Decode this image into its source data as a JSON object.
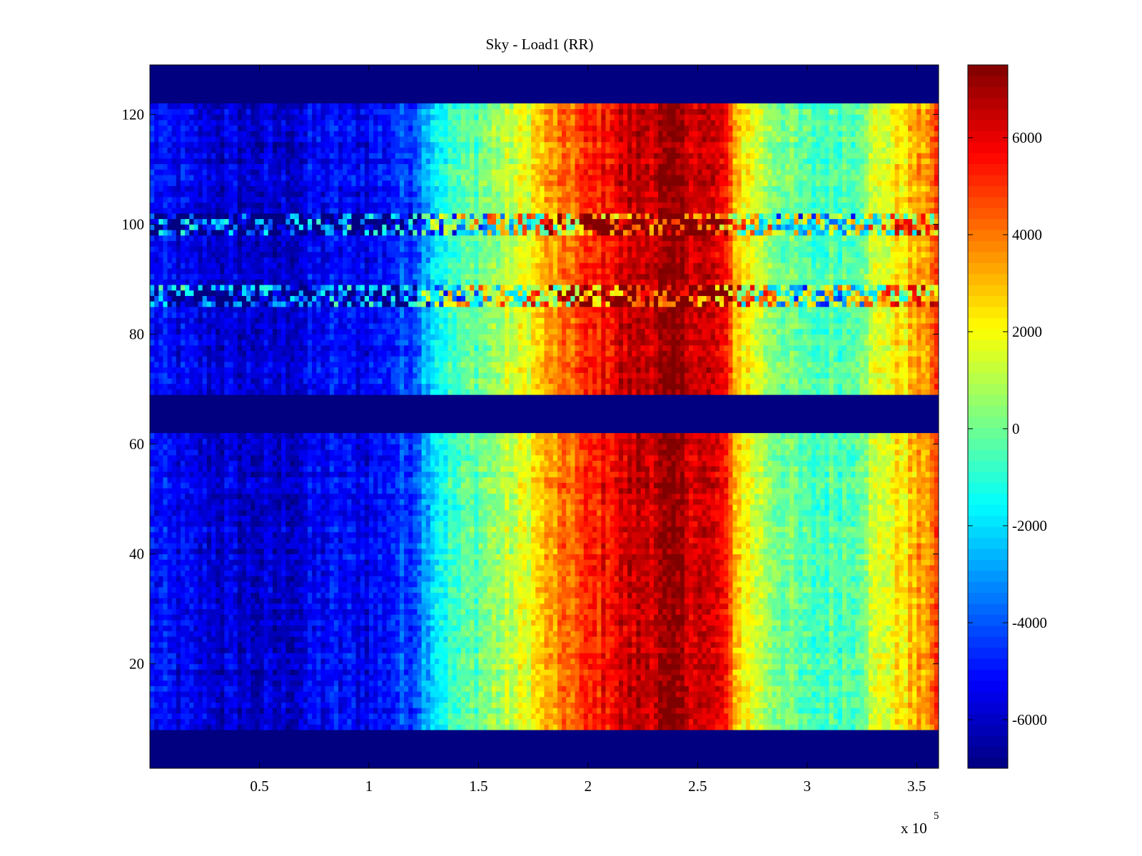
{
  "chart_data": {
    "type": "heatmap",
    "title": "Sky - Load1 (RR)",
    "xlabel": "",
    "ylabel": "",
    "x_multiplier_label": "x 10",
    "x_multiplier_exponent": "5",
    "xlim": [
      0,
      3.6
    ],
    "ylim": [
      1,
      129
    ],
    "x_ticks": [
      0.5,
      1,
      1.5,
      2,
      2.5,
      3,
      3.5
    ],
    "x_tick_labels": [
      "0.5",
      "1",
      "1.5",
      "2",
      "2.5",
      "3",
      "3.5"
    ],
    "y_ticks": [
      20,
      40,
      60,
      80,
      100,
      120
    ],
    "y_tick_labels": [
      "20",
      "40",
      "60",
      "80",
      "100",
      "120"
    ],
    "colormap": "jet",
    "clim": [
      -7000,
      7500
    ],
    "colorbar": {
      "ticks": [
        -6000,
        -4000,
        -2000,
        0,
        2000,
        4000,
        6000
      ],
      "tick_labels": [
        "-6000",
        "-4000",
        "-2000",
        "0",
        "2000",
        "4000",
        "6000"
      ]
    },
    "empty_row_bands": [
      [
        1,
        8
      ],
      [
        62,
        69
      ],
      [
        122,
        129
      ]
    ],
    "noisy_row_bands": [
      [
        98,
        102
      ],
      [
        85,
        89
      ]
    ],
    "column_profile": {
      "x": [
        0,
        0.2,
        0.4,
        0.6,
        0.8,
        1.0,
        1.2,
        1.3,
        1.5,
        1.7,
        1.8,
        2.0,
        2.2,
        2.4,
        2.6,
        2.7,
        2.8,
        3.0,
        3.2,
        3.3,
        3.5,
        3.6
      ],
      "value": [
        -5000,
        -5600,
        -5900,
        -6000,
        -5200,
        -5300,
        -4100,
        -1500,
        0,
        1500,
        3000,
        5000,
        6500,
        7000,
        6000,
        2500,
        1000,
        -700,
        -200,
        1200,
        3000,
        4500
      ]
    }
  }
}
